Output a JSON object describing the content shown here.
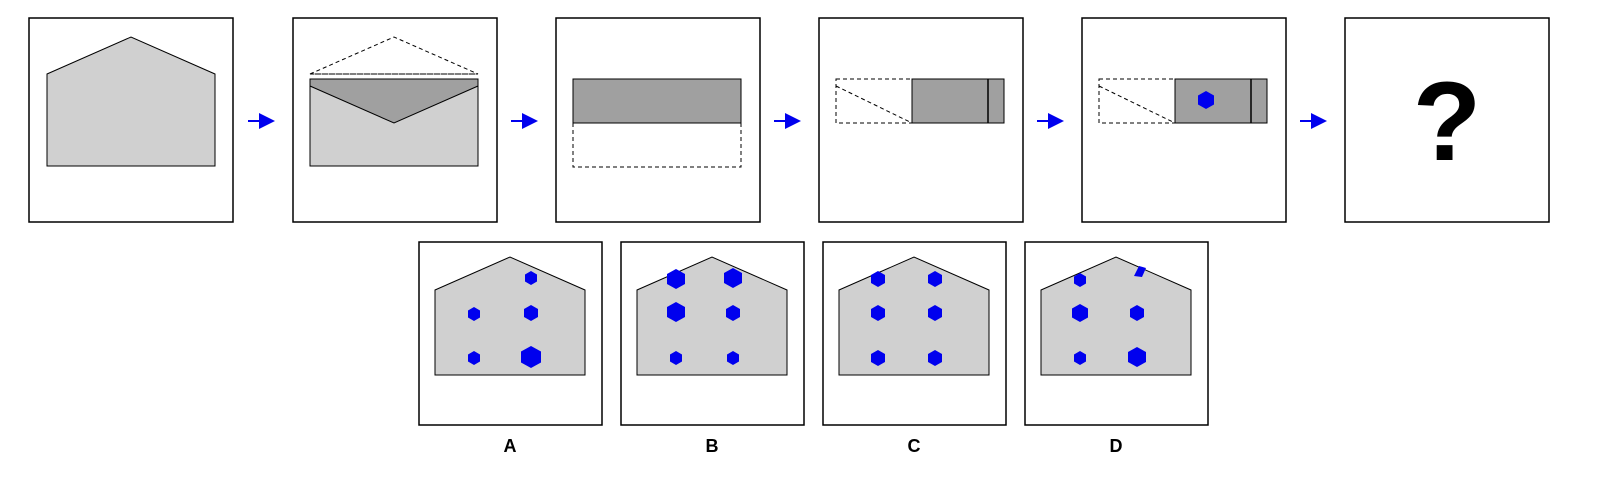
{
  "puzzle": {
    "question_mark": "?",
    "colors": {
      "paper_light": "#d0d0d0",
      "paper_dark": "#a0a0a0",
      "accent_blue": "#0000ee",
      "stroke": "#000000"
    },
    "steps": [
      {
        "id": "step-1-shape"
      },
      {
        "id": "step-2-fold-top-down"
      },
      {
        "id": "step-3-fold-bottom-up"
      },
      {
        "id": "step-4-fold-left"
      },
      {
        "id": "step-5-punch-hole"
      },
      {
        "id": "step-6-answer-placeholder"
      }
    ],
    "options": [
      {
        "label": "A"
      },
      {
        "label": "B"
      },
      {
        "label": "C"
      },
      {
        "label": "D"
      }
    ]
  }
}
